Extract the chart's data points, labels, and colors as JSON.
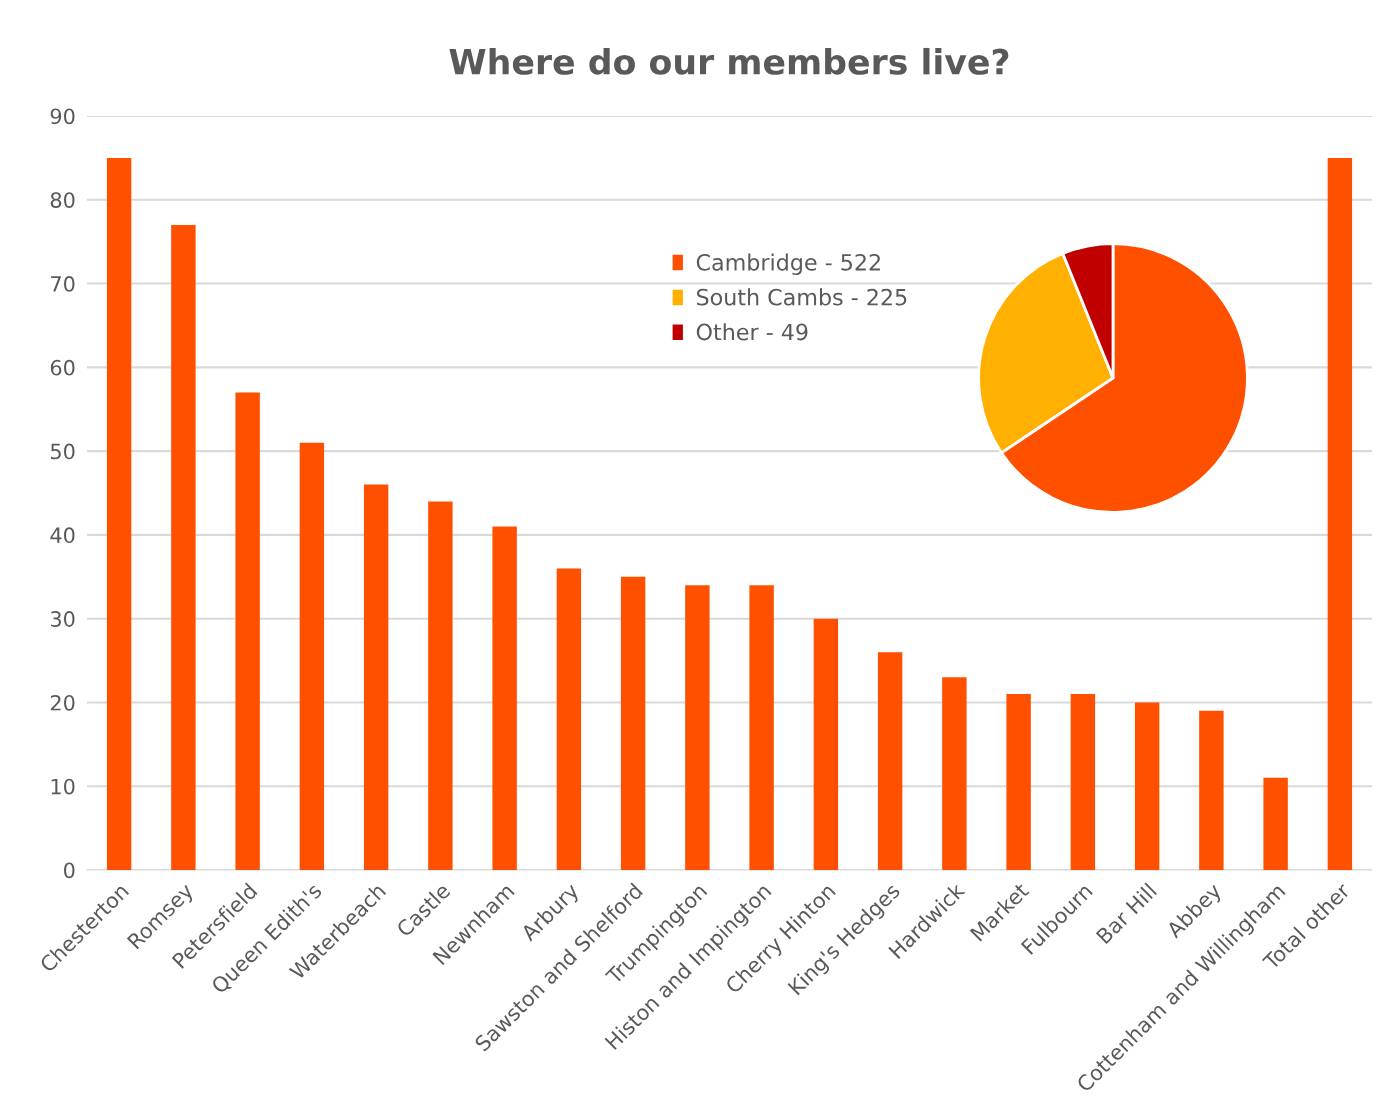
{
  "chart_data": [
    {
      "type": "bar",
      "title": "Where do our members live?",
      "categories": [
        "Chesterton",
        "Romsey",
        "Petersfield",
        "Queen Edith's",
        "Waterbeach",
        "Castle",
        "Newnham",
        "Arbury",
        "Sawston and Shelford",
        "Trumpington",
        "Histon and Impington",
        "Cherry Hinton",
        "King's Hedges",
        "Hardwick",
        "Market",
        "Fulbourn",
        "Bar Hill",
        "Abbey",
        "Cottenham and Willingham",
        "Total other"
      ],
      "values": [
        85,
        77,
        57,
        51,
        46,
        44,
        41,
        36,
        35,
        34,
        34,
        30,
        26,
        23,
        21,
        21,
        20,
        19,
        11,
        85
      ],
      "color": "#ff5000",
      "ylim": [
        0,
        90
      ],
      "yticks": [
        0,
        10,
        20,
        30,
        40,
        50,
        60,
        70,
        80,
        90
      ],
      "grid": "y"
    },
    {
      "type": "pie",
      "categories": [
        "Cambridge - 522",
        "South Cambs - 225",
        "Other - 49"
      ],
      "values": [
        65.6,
        28.3,
        6.1
      ],
      "colors": [
        "#ff5000",
        "#ffb000",
        "#c00000"
      ],
      "legend": "left"
    }
  ]
}
